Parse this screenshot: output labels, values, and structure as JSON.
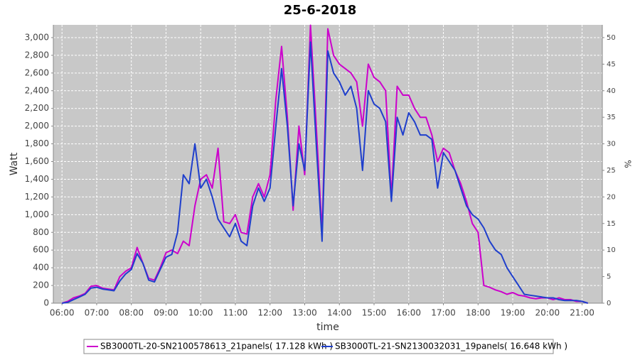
{
  "chart_data": {
    "type": "line",
    "title": "25-6-2018",
    "xlabel": "time",
    "ylabel": "Watt",
    "y2label": "%",
    "grid": true,
    "legend": "bottom",
    "xlim": [
      "05:45",
      "21:35"
    ],
    "xticks": [
      "06:00",
      "07:00",
      "08:00",
      "09:00",
      "10:00",
      "11:00",
      "12:00",
      "13:00",
      "14:00",
      "15:00",
      "16:00",
      "17:00",
      "18:00",
      "19:00",
      "20:00",
      "21:00"
    ],
    "ylim": [
      0,
      3144
    ],
    "yticks": [
      0,
      200,
      400,
      600,
      800,
      {
        "value": 1000,
        "label": "1,000"
      },
      {
        "value": 1200,
        "label": "1,200"
      },
      {
        "value": 1400,
        "label": "1,400"
      },
      {
        "value": 1600,
        "label": "1,600"
      },
      {
        "value": 1800,
        "label": "1,800"
      },
      {
        "value": 2000,
        "label": "2,000"
      },
      {
        "value": 2200,
        "label": "2,200"
      },
      {
        "value": 2400,
        "label": "2,400"
      },
      {
        "value": 2600,
        "label": "2,600"
      },
      {
        "value": 2800,
        "label": "2,800"
      },
      {
        "value": 3000,
        "label": "3,000"
      }
    ],
    "y2lim": [
      0,
      52.4
    ],
    "y2ticks": [
      0,
      5,
      10,
      15,
      20,
      25,
      30,
      35,
      40,
      45,
      50
    ],
    "x": [
      "06:00",
      "06:10",
      "06:20",
      "06:30",
      "06:40",
      "06:50",
      "07:00",
      "07:10",
      "07:20",
      "07:30",
      "07:40",
      "07:50",
      "08:00",
      "08:10",
      "08:20",
      "08:30",
      "08:40",
      "08:50",
      "09:00",
      "09:10",
      "09:20",
      "09:30",
      "09:40",
      "09:50",
      "10:00",
      "10:10",
      "10:20",
      "10:30",
      "10:40",
      "10:50",
      "11:00",
      "11:10",
      "11:20",
      "11:30",
      "11:40",
      "11:50",
      "12:00",
      "12:10",
      "12:20",
      "12:30",
      "12:40",
      "12:50",
      "13:00",
      "13:10",
      "13:20",
      "13:30",
      "13:40",
      "13:50",
      "14:00",
      "14:10",
      "14:20",
      "14:30",
      "14:40",
      "14:50",
      "15:00",
      "15:10",
      "15:20",
      "15:30",
      "15:40",
      "15:50",
      "16:00",
      "16:10",
      "16:20",
      "16:30",
      "16:40",
      "16:50",
      "17:00",
      "17:10",
      "17:20",
      "17:30",
      "17:40",
      "17:50",
      "18:00",
      "18:10",
      "18:20",
      "18:30",
      "18:40",
      "18:50",
      "19:00",
      "19:10",
      "19:20",
      "19:30",
      "19:40",
      "19:50",
      "20:00",
      "20:10",
      "20:20",
      "20:30",
      "20:40",
      "20:50",
      "21:00",
      "21:10"
    ],
    "series": [
      {
        "name": "SB3000TL-20-SN2100578613_21panels( 17.128 kWh )",
        "color": "#cc00cc",
        "values": [
          0,
          20,
          60,
          80,
          110,
          190,
          200,
          170,
          160,
          150,
          300,
          360,
          400,
          630,
          450,
          280,
          260,
          400,
          570,
          600,
          560,
          700,
          650,
          1100,
          1400,
          1450,
          1300,
          1750,
          920,
          900,
          1000,
          800,
          780,
          1200,
          1350,
          1200,
          1450,
          2300,
          2900,
          2100,
          1050,
          2000,
          1450,
          3140,
          2000,
          800,
          3100,
          2800,
          2700,
          2650,
          2600,
          2500,
          2000,
          2700,
          2550,
          2500,
          2400,
          1200,
          2450,
          2350,
          2350,
          2200,
          2100,
          2100,
          1900,
          1600,
          1750,
          1700,
          1500,
          1350,
          1150,
          900,
          800,
          200,
          180,
          150,
          130,
          100,
          120,
          90,
          80,
          60,
          50,
          60,
          60,
          40,
          60,
          40,
          40,
          20,
          20,
          0
        ]
      },
      {
        "name": "SB3000TL-21-SN2130032031_19panels( 16.648 kWh )",
        "color": "#1f3fcc",
        "values": [
          0,
          10,
          40,
          70,
          100,
          170,
          180,
          160,
          150,
          140,
          250,
          330,
          380,
          560,
          450,
          260,
          240,
          380,
          520,
          550,
          800,
          1450,
          1350,
          1800,
          1300,
          1400,
          1200,
          950,
          850,
          750,
          900,
          700,
          650,
          1100,
          1300,
          1150,
          1300,
          2000,
          2650,
          2000,
          1100,
          1800,
          1500,
          2950,
          1800,
          700,
          2850,
          2600,
          2500,
          2350,
          2450,
          2200,
          1500,
          2400,
          2250,
          2200,
          2050,
          1150,
          2100,
          1900,
          2150,
          2050,
          1900,
          1900,
          1850,
          1300,
          1700,
          1600,
          1500,
          1300,
          1100,
          1000,
          950,
          850,
          700,
          600,
          550,
          400,
          300,
          200,
          100,
          90,
          80,
          70,
          60,
          60,
          40,
          30,
          30,
          30,
          20,
          0
        ]
      }
    ]
  }
}
